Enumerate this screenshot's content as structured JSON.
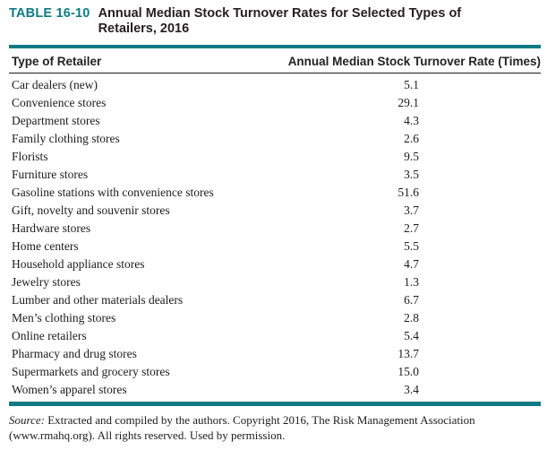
{
  "table": {
    "label": "TABLE 16-10",
    "title": "Annual Median Stock Turnover Rates for Selected Types of Retailers, 2016",
    "columns": [
      "Type of Retailer",
      "Annual Median Stock Turnover Rate (Times)"
    ],
    "rows": [
      {
        "type": "Car dealers (new)",
        "rate": "5.1"
      },
      {
        "type": "Convenience stores",
        "rate": "29.1"
      },
      {
        "type": "Department stores",
        "rate": "4.3"
      },
      {
        "type": "Family clothing stores",
        "rate": "2.6"
      },
      {
        "type": "Florists",
        "rate": "9.5"
      },
      {
        "type": "Furniture stores",
        "rate": "3.5"
      },
      {
        "type": "Gasoline stations with convenience stores",
        "rate": "51.6"
      },
      {
        "type": "Gift, novelty and souvenir stores",
        "rate": "3.7"
      },
      {
        "type": "Hardware stores",
        "rate": "2.7"
      },
      {
        "type": "Home centers",
        "rate": "5.5"
      },
      {
        "type": "Household appliance stores",
        "rate": "4.7"
      },
      {
        "type": "Jewelry stores",
        "rate": "1.3"
      },
      {
        "type": "Lumber and other materials dealers",
        "rate": "6.7"
      },
      {
        "type": "Men’s clothing stores",
        "rate": "2.8"
      },
      {
        "type": "Online retailers",
        "rate": "5.4"
      },
      {
        "type": "Pharmacy and drug stores",
        "rate": "13.7"
      },
      {
        "type": "Supermarkets and grocery stores",
        "rate": "15.0"
      },
      {
        "type": "Women’s apparel stores",
        "rate": "3.4"
      }
    ]
  },
  "source": {
    "prefix": "Source:",
    "text": " Extracted and compiled by the authors. Copyright 2016, The Risk Management Association (www.rmahq.org). All rights reserved. Used by permission."
  },
  "colors": {
    "accent_teal": "#0E7B84",
    "title_text": "#231F20",
    "body_text": "#1c1c1c"
  }
}
